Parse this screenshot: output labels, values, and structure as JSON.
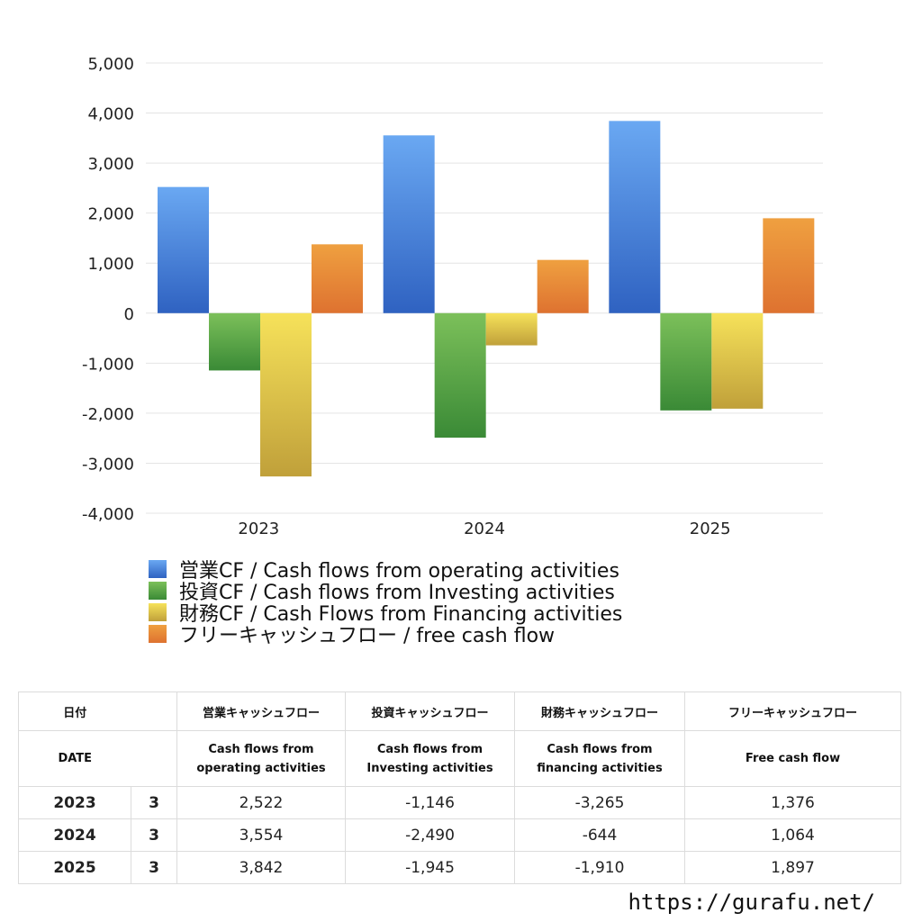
{
  "colors": {
    "operating": [
      "#6aa8f2",
      "#2f62c1"
    ],
    "investing": [
      "#7cc05a",
      "#3a8a36"
    ],
    "financing": [
      "#f6e25a",
      "#c0a03a"
    ],
    "free": [
      "#efa040",
      "#de7230"
    ],
    "negative_text": "#e5452b",
    "grid": "#e4e4e4"
  },
  "chart_data": {
    "type": "bar",
    "categories": [
      "2023",
      "2024",
      "2025"
    ],
    "series": [
      {
        "name": "営業CF / Cash flows from operating activities",
        "values": [
          2522,
          3554,
          3842
        ]
      },
      {
        "name": "投資CF / Cash flows from Investing activities",
        "values": [
          -1146,
          -2490,
          -1945
        ]
      },
      {
        "name": "財務CF / Cash Flows from Financing activities",
        "values": [
          -3265,
          -644,
          -1910
        ]
      },
      {
        "name": "フリーキャッシュフロー / free cash flow",
        "values": [
          1376,
          1064,
          1897
        ]
      }
    ],
    "ylim": [
      -4000,
      5000
    ],
    "yticks": [
      5000,
      4000,
      3000,
      2000,
      1000,
      0,
      -1000,
      -2000,
      -3000,
      -4000
    ],
    "ytick_labels": [
      "5,000",
      "4,000",
      "3,000",
      "2,000",
      "1,000",
      "0",
      "-1,000",
      "-2,000",
      "-3,000",
      "-4,000"
    ],
    "grid": true,
    "legend_position": "bottom-left"
  },
  "table": {
    "headers_jp": [
      "日付",
      "営業キャッシュフロー",
      "投資キャッシュフロー",
      "財務キャッシュフロー",
      "フリーキャッシュフロー"
    ],
    "headers_en": [
      "DATE",
      [
        "Cash flows from",
        "operating activities"
      ],
      [
        "Cash flows from",
        "Investing activities"
      ],
      [
        "Cash flows from",
        "financing activities"
      ],
      [
        "Free cash flow"
      ]
    ],
    "rows": [
      {
        "year": "2023",
        "month": "3",
        "values": [
          "2,522",
          "-1,146",
          "-3,265",
          "1,376"
        ]
      },
      {
        "year": "2024",
        "month": "3",
        "values": [
          "3,554",
          "-2,490",
          "-644",
          "1,064"
        ]
      },
      {
        "year": "2025",
        "month": "3",
        "values": [
          "3,842",
          "-1,945",
          "-1,910",
          "1,897"
        ]
      }
    ]
  },
  "footer": {
    "url": "https://gurafu.net/"
  }
}
